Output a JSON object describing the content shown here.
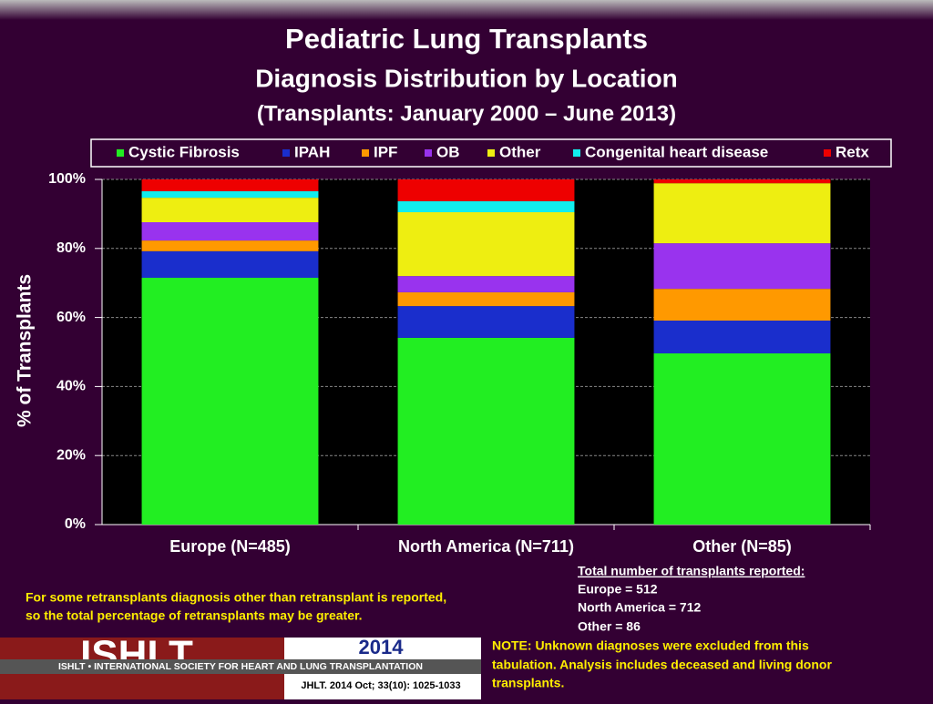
{
  "chart_data": {
    "type": "stacked_bar",
    "title": "Pediatric Lung Transplants",
    "subtitles": [
      "Diagnosis Distribution by Location",
      "(Transplants: January 2000 – June 2013)"
    ],
    "y_label": "% of Transplants",
    "categories": [
      "Europe (N=485)",
      "North America (N=711)",
      "Other (N=85)"
    ],
    "series": [
      {
        "name": "Cystic Fibrosis",
        "color": "#22ee22",
        "values": [
          71.5,
          54.1,
          49.6
        ]
      },
      {
        "name": "IPAH",
        "color": "#1a2ecc",
        "values": [
          7.7,
          9.2,
          9.5
        ]
      },
      {
        "name": "IPF",
        "color": "#ff9900",
        "values": [
          3.1,
          4.0,
          9.2
        ]
      },
      {
        "name": "OB",
        "color": "#9933ee",
        "values": [
          5.3,
          4.7,
          13.2
        ]
      },
      {
        "name": "Other",
        "color": "#eeee11",
        "values": [
          7.1,
          18.5,
          17.4
        ]
      },
      {
        "name": "Congenital heart disease",
        "color": "#11eeee",
        "values": [
          1.9,
          3.2,
          0
        ]
      },
      {
        "name": "Retx",
        "color": "#ee0000",
        "values": [
          3.4,
          6.3,
          1.1
        ]
      }
    ],
    "ylim": [
      0,
      100
    ],
    "yticks": [
      {
        "value": 0,
        "label": "0%"
      },
      {
        "value": 20,
        "label": "20%"
      },
      {
        "value": 40,
        "label": "40%"
      },
      {
        "value": 60,
        "label": "60%"
      },
      {
        "value": 80,
        "label": "80%"
      },
      {
        "value": 100,
        "label": "100%"
      }
    ],
    "grid": true
  },
  "notes": {
    "retransplant": [
      "For some retransplants diagnosis other than retransplant is reported,",
      "so the total percentage of retransplants may be greater."
    ],
    "totals_header": "Total number of transplants reported:",
    "totals": [
      "Europe = 512",
      "North America = 712",
      "Other = 86"
    ],
    "exclusion": [
      "NOTE: Unknown diagnoses were excluded from this",
      "tabulation. Analysis includes deceased and living donor",
      "transplants."
    ]
  },
  "footer": {
    "logo": "ISHLT",
    "society": "ISHLT • INTERNATIONAL SOCIETY FOR HEART AND LUNG TRANSPLANTATION",
    "year": "2014",
    "citation": "JHLT. 2014 Oct; 33(10): 1025-1033"
  }
}
